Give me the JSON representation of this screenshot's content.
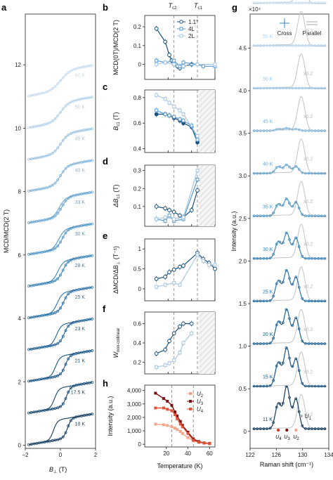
{
  "chart_data": [
    {
      "panel": "a",
      "type": "line",
      "xlabel": "B⊥ (T)",
      "ylabel": "MCD/MCD(2 T)",
      "xlim": [
        -2,
        2
      ],
      "ylim": [
        -0.1,
        13.6
      ],
      "xticks": [
        "−2",
        "0",
        "2"
      ],
      "yticks": [
        "0",
        "2",
        "4",
        "6",
        "8",
        "10",
        "12"
      ],
      "series": [
        {
          "name": "10 K",
          "offset": 0,
          "color": "#103a5c",
          "hysteresis": 0.4
        },
        {
          "name": "17.5 K",
          "offset": 1,
          "color": "#14476e",
          "hysteresis": 0.34
        },
        {
          "name": "21 K",
          "offset": 2,
          "color": "#185482",
          "hysteresis": 0.28
        },
        {
          "name": "23 K",
          "offset": 3,
          "color": "#1f6294",
          "hysteresis": 0.22
        },
        {
          "name": "25 K",
          "offset": 4,
          "color": "#2a72a6",
          "hysteresis": 0.18
        },
        {
          "name": "28 K",
          "offset": 5,
          "color": "#3a84b6",
          "hysteresis": 0.14
        },
        {
          "name": "30 K",
          "offset": 6,
          "color": "#5095c4",
          "hysteresis": 0.1
        },
        {
          "name": "33 K",
          "offset": 7,
          "color": "#6aa6cf",
          "hysteresis": 0.07
        },
        {
          "name": "40 K",
          "offset": 8,
          "color": "#86b6d9",
          "hysteresis": 0
        },
        {
          "name": "45 K",
          "offset": 9,
          "color": "#9fc5e2",
          "hysteresis": 0
        },
        {
          "name": "50 K",
          "offset": 10,
          "color": "#b4d2ea",
          "hysteresis": 0
        },
        {
          "name": "60 K",
          "offset": 11,
          "color": "#c8ddef",
          "hysteresis": 0
        }
      ]
    },
    {
      "panel": "b",
      "type": "line",
      "ylabel": "MCD(0T)/MCD(2 T)",
      "xlim": [
        0,
        60
      ],
      "ylim": [
        -0.08,
        0.26
      ],
      "yticks": [
        0,
        0.1,
        0.2
      ],
      "annotations": {
        "tc2": "T",
        "tc2_sub": "c2",
        "tc1": "T",
        "tc1_sub": "c1",
        "tc2_x": 25,
        "tc1_x": 45
      },
      "legend": [
        "1.1°",
        "4L",
        "2L"
      ],
      "series": [
        {
          "name": "1.1°",
          "color": "#1b4f7a",
          "x": [
            10,
            17.5,
            21,
            23,
            25,
            28,
            30,
            33,
            40
          ],
          "y": [
            0.19,
            0.12,
            0.05,
            0.02,
            0.0,
            -0.01,
            -0.02,
            -0.01,
            0.0
          ]
        },
        {
          "name": "4L",
          "color": "#5a9bd0",
          "x": [
            10,
            17.5,
            25,
            30,
            33,
            45,
            50,
            60
          ],
          "y": [
            0.02,
            0.01,
            0.02,
            -0.01,
            0.01,
            0.0,
            -0.01,
            -0.01
          ]
        },
        {
          "name": "2L",
          "color": "#a8c6e4",
          "x": [
            10,
            17.5,
            25,
            33,
            45,
            60
          ],
          "y": [
            0.0,
            0.01,
            0.0,
            -0.01,
            0.0,
            0.0
          ]
        }
      ]
    },
    {
      "panel": "c",
      "type": "line",
      "ylabel": "B",
      "ylabel_sub": "c1",
      "ylabel_unit": " (T)",
      "xlim": [
        0,
        60
      ],
      "ylim": [
        0.37,
        0.86
      ],
      "yticks": [
        0.4,
        0.6,
        0.8
      ],
      "series": [
        {
          "name": "1.1°",
          "color": "#1b4f7a",
          "x": [
            10,
            17.5,
            21,
            25,
            30,
            33,
            40,
            45
          ],
          "y": [
            0.67,
            0.67,
            0.66,
            0.64,
            0.62,
            0.6,
            0.57,
            0.45
          ]
        },
        {
          "name": "4L",
          "color": "#5a9bd0",
          "x": [
            10,
            17.5,
            21,
            25,
            30,
            33,
            40,
            45
          ],
          "y": [
            0.7,
            0.67,
            0.66,
            0.65,
            0.63,
            0.62,
            0.58,
            0.47
          ]
        },
        {
          "name": "2L",
          "color": "#a8c6e4",
          "x": [
            10,
            17.5,
            21,
            25,
            30,
            33,
            45
          ],
          "y": [
            0.82,
            0.79,
            0.76,
            0.73,
            0.7,
            0.67,
            0.5
          ]
        }
      ]
    },
    {
      "panel": "d",
      "type": "line",
      "ylabel": "ΔB",
      "ylabel_sub": "c1",
      "ylabel_unit": " (T)",
      "xlim": [
        0,
        60
      ],
      "ylim": [
        -0.01,
        0.33
      ],
      "yticks": [
        0.1,
        0.2,
        0.3
      ],
      "series": [
        {
          "name": "1.1°",
          "color": "#1b4f7a",
          "x": [
            10,
            17.5,
            21,
            25,
            30,
            33,
            40,
            45
          ],
          "y": [
            0.1,
            0.09,
            0.08,
            0.07,
            0.05,
            0.04,
            0.08,
            0.19
          ]
        },
        {
          "name": "4L",
          "color": "#5a9bd0",
          "x": [
            10,
            17.5,
            21,
            25,
            33,
            45
          ],
          "y": [
            0.03,
            0.02,
            0.05,
            0.02,
            0.03,
            0.25
          ]
        },
        {
          "name": "2L",
          "color": "#a8c6e4",
          "x": [
            10,
            17.5,
            25,
            33,
            45
          ],
          "y": [
            0.03,
            0.04,
            0.03,
            0.04,
            0.3
          ]
        }
      ]
    },
    {
      "panel": "e",
      "type": "line",
      "ylabel": "ΔMCD/ΔB",
      "ylabel_sub": "⊥",
      "ylabel_unit": " (T⁻¹)",
      "xlim": [
        0,
        60
      ],
      "ylim": [
        -0.3,
        1.25
      ],
      "yticks": [
        0,
        0.5,
        1
      ],
      "series": [
        {
          "name": "1.1°",
          "color": "#1b4f7a",
          "x": [
            10,
            17.5,
            21,
            25,
            30,
            33,
            45,
            50,
            55,
            60
          ],
          "y": [
            0.25,
            0.3,
            0.42,
            0.48,
            0.55,
            0.58,
            0.9,
            0.75,
            0.65,
            0.5
          ]
        },
        {
          "name": "2L",
          "color": "#a8c6e4",
          "x": [
            10,
            17.5,
            25,
            30,
            45,
            50,
            55,
            60
          ],
          "y": [
            0.05,
            0.1,
            0.15,
            0.1,
            0.85,
            0.7,
            0.6,
            0.6
          ]
        }
      ]
    },
    {
      "panel": "f",
      "type": "line",
      "ylabel": "W",
      "ylabel_sub": "non-collinear",
      "xlim": [
        0,
        60
      ],
      "ylim": [
        0.08,
        0.72
      ],
      "yticks": [
        0.2,
        0.4,
        0.6
      ],
      "series": [
        {
          "name": "1.1°",
          "color": "#1b4f7a",
          "x": [
            10,
            17.5,
            21,
            25,
            30,
            33,
            40
          ],
          "y": [
            0.29,
            0.33,
            0.42,
            0.5,
            0.57,
            0.6,
            0.6
          ]
        },
        {
          "name": "2L",
          "color": "#a8c6e4",
          "x": [
            10,
            17.5,
            21,
            25,
            30,
            33,
            40
          ],
          "y": [
            0.15,
            0.17,
            0.19,
            0.22,
            0.3,
            0.4,
            0.5
          ]
        }
      ]
    },
    {
      "panel": "h",
      "type": "line",
      "ylabel": "Intensity (a.u.)",
      "xlabel": "Temperature (K)",
      "xlim": [
        0,
        65
      ],
      "ylim": [
        -200,
        4400
      ],
      "yticks": [
        "0",
        "1,000",
        "2,000",
        "3,000",
        "4,000"
      ],
      "xticks": [
        20,
        40,
        60
      ],
      "legend": [
        {
          "t": "U",
          "s": "2"
        },
        {
          "t": "U",
          "s": "3"
        },
        {
          "t": "U",
          "s": "4"
        }
      ],
      "series": [
        {
          "name": "U2",
          "color": "#f3a68a",
          "x": [
            10,
            17.5,
            21,
            25,
            28,
            30,
            33,
            35,
            40,
            45,
            50,
            55,
            60
          ],
          "y": [
            1500,
            1450,
            1400,
            1300,
            1200,
            1100,
            950,
            800,
            500,
            250,
            150,
            100,
            80
          ]
        },
        {
          "name": "U3",
          "color": "#7a1010",
          "x": [
            10,
            17.5,
            21,
            25,
            28,
            30,
            33,
            35,
            40,
            45,
            50,
            55,
            60
          ],
          "y": [
            3800,
            3400,
            3200,
            2900,
            2400,
            2100,
            1700,
            1400,
            900,
            400,
            200,
            100,
            60
          ]
        },
        {
          "name": "U4",
          "color": "#e0523a",
          "x": [
            10,
            17.5,
            21,
            25,
            28,
            30,
            33,
            35,
            40,
            45,
            50,
            55,
            60
          ],
          "y": [
            2700,
            2700,
            2600,
            2500,
            2200,
            1900,
            1500,
            1300,
            800,
            300,
            150,
            90,
            50
          ]
        }
      ]
    },
    {
      "panel": "g",
      "type": "line",
      "ylabel": "Intensity (a.u.)",
      "xlabel": "Raman shift (cm⁻¹)",
      "scale_label": "×10⁴",
      "xlim": [
        122,
        134
      ],
      "ylim": [
        -0.2,
        4.9
      ],
      "xticks": [
        122,
        126,
        130,
        134
      ],
      "yticks": [
        "0",
        "0.5",
        "1.0",
        "1.5",
        "2.0",
        "2.5",
        "3.0",
        "3.5",
        "4.0",
        "4.5"
      ],
      "legend": [
        "Cross",
        "Parallel"
      ],
      "peak_labels": [
        {
          "t": "U",
          "s": "4",
          "x": 126.3,
          "color": "#d43a2a"
        },
        {
          "t": "U",
          "s": "3",
          "x": 127.6,
          "color": "#7a1010"
        },
        {
          "t": "U",
          "s": "2",
          "x": 129.0,
          "color": "#f3a68a"
        },
        {
          "t": "U",
          "s": "1",
          "x": 129.8,
          "color": "#b0b0b0"
        }
      ],
      "multiplier": "x0.2",
      "series": [
        {
          "name": "11 K",
          "offset": 0,
          "color": "#103a5c",
          "peaks": [
            0.3,
            0.5,
            0.35
          ]
        },
        {
          "name": "15 K",
          "offset": 0.5,
          "color": "#185482",
          "peaks": [
            0.28,
            0.45,
            0.32
          ]
        },
        {
          "name": "20 K",
          "offset": 1.0,
          "color": "#1f6294",
          "peaks": [
            0.26,
            0.4,
            0.3
          ]
        },
        {
          "name": "25 K",
          "offset": 1.5,
          "color": "#2a72a6",
          "peaks": [
            0.24,
            0.36,
            0.28
          ]
        },
        {
          "name": "30 K",
          "offset": 2.0,
          "color": "#3a84b6",
          "peaks": [
            0.2,
            0.3,
            0.24
          ]
        },
        {
          "name": "35 K",
          "offset": 2.5,
          "color": "#5095c4",
          "peaks": [
            0.14,
            0.2,
            0.16
          ]
        },
        {
          "name": "40 K",
          "offset": 3.0,
          "color": "#6aa6cf",
          "peaks": [
            0.08,
            0.1,
            0.08
          ]
        },
        {
          "name": "45 K",
          "offset": 3.5,
          "color": "#86b6d9",
          "peaks": [
            0.02,
            0.03,
            0.02
          ]
        },
        {
          "name": "50 K",
          "offset": 4.0,
          "color": "#9fc5e2",
          "peaks": [
            0,
            0,
            0
          ]
        },
        {
          "name": "55 K",
          "offset": 4.5,
          "color": "#b4d2ea",
          "peaks": [
            0,
            0,
            0
          ]
        },
        {
          "name": "60 K",
          "offset": 5.0,
          "color": "#c8ddef",
          "peaks": [
            0,
            0,
            0
          ]
        }
      ]
    }
  ]
}
